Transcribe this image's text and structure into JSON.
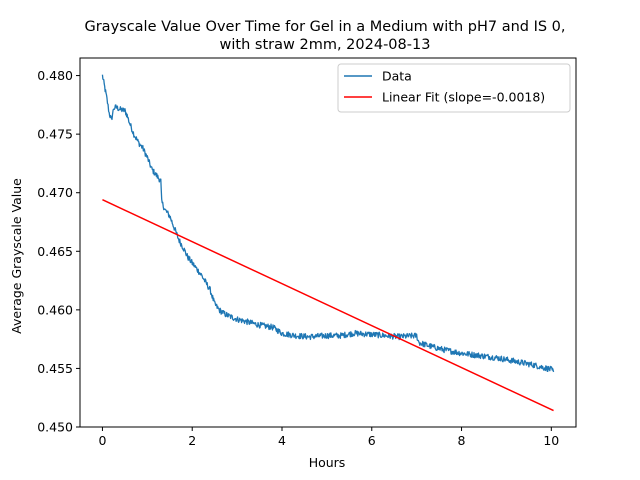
{
  "chart_data": {
    "type": "line",
    "title_lines": [
      "Grayscale Value Over Time for Gel in a Medium with pH7 and IS 0,",
      "with straw 2mm, 2024-08-13"
    ],
    "xlabel": "Hours",
    "ylabel": "Average Grayscale Value",
    "xlim": [
      -0.5,
      10.55
    ],
    "ylim": [
      0.45,
      0.4815
    ],
    "x_ticks": [
      0,
      2,
      4,
      6,
      8,
      10
    ],
    "x_tick_labels": [
      "0",
      "2",
      "4",
      "6",
      "8",
      "10"
    ],
    "y_ticks": [
      0.45,
      0.455,
      0.46,
      0.465,
      0.47,
      0.475,
      0.48
    ],
    "y_tick_labels": [
      "0.450",
      "0.455",
      "0.460",
      "0.465",
      "0.470",
      "0.475",
      "0.480"
    ],
    "grid": false,
    "legend_position": "upper right",
    "series": [
      {
        "name": "Data",
        "color": "#1f77b4",
        "noise_amplitude": 0.00025,
        "x": [
          0,
          0.05,
          0.1,
          0.15,
          0.2,
          0.25,
          0.3,
          0.4,
          0.5,
          0.55,
          0.6,
          0.7,
          0.8,
          0.9,
          1.0,
          1.1,
          1.2,
          1.3,
          1.32,
          1.4,
          1.5,
          1.6,
          1.7,
          1.8,
          1.9,
          2.0,
          2.2,
          2.4,
          2.5,
          2.6,
          2.7,
          2.8,
          3.0,
          3.2,
          3.5,
          3.8,
          4.0,
          4.3,
          4.6,
          5.0,
          5.3,
          5.6,
          6.0,
          6.3,
          6.6,
          7.0,
          7.05,
          7.3,
          7.6,
          8.0,
          8.4,
          8.8,
          9.2,
          9.6,
          10.0,
          10.05
        ],
        "y": [
          0.48,
          0.479,
          0.478,
          0.4768,
          0.4762,
          0.4772,
          0.4773,
          0.4771,
          0.477,
          0.4766,
          0.476,
          0.475,
          0.4743,
          0.4738,
          0.473,
          0.472,
          0.4715,
          0.471,
          0.4692,
          0.4685,
          0.468,
          0.467,
          0.466,
          0.4653,
          0.4645,
          0.464,
          0.463,
          0.4617,
          0.4605,
          0.46,
          0.4597,
          0.4595,
          0.4592,
          0.459,
          0.4587,
          0.4585,
          0.458,
          0.4578,
          0.4577,
          0.4578,
          0.4578,
          0.458,
          0.4579,
          0.4578,
          0.4577,
          0.4578,
          0.4572,
          0.4569,
          0.4566,
          0.4563,
          0.4561,
          0.4559,
          0.4556,
          0.4553,
          0.4549,
          0.4547
        ]
      },
      {
        "name": "Linear Fit (slope=-0.0018)",
        "color": "#ff0000",
        "x": [
          0,
          10.05
        ],
        "y": [
          0.4694,
          0.4514
        ]
      }
    ]
  }
}
